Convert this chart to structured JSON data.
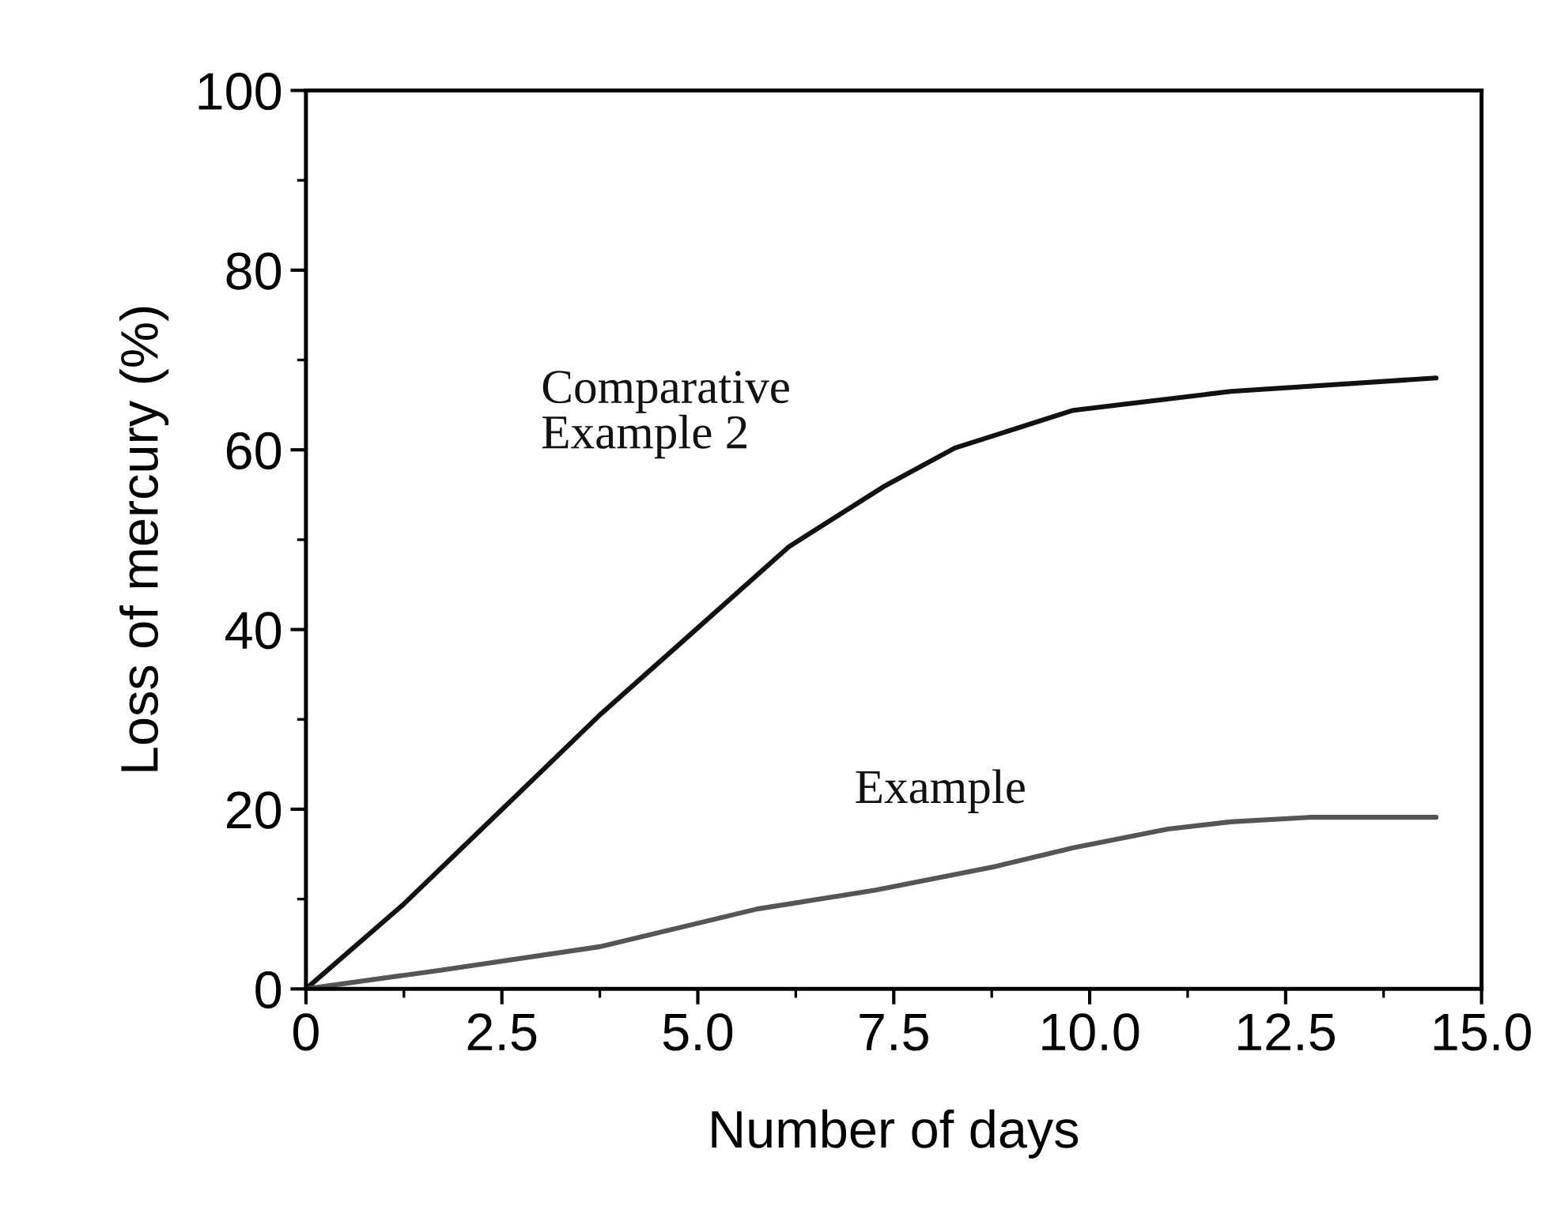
{
  "chart_data": {
    "type": "line",
    "xlabel": "Number of days",
    "ylabel": "Loss of mercury (%)",
    "xlim": [
      0,
      15
    ],
    "ylim": [
      0,
      100
    ],
    "xticks": [
      {
        "value": 0,
        "label": "0"
      },
      {
        "value": 2.5,
        "label": "2.5"
      },
      {
        "value": 5,
        "label": "5.0"
      },
      {
        "value": 7.5,
        "label": "7.5"
      },
      {
        "value": 10,
        "label": "10.0"
      },
      {
        "value": 12.5,
        "label": "12.5"
      },
      {
        "value": 15,
        "label": "15.0"
      }
    ],
    "yticks": [
      0,
      20,
      40,
      60,
      80,
      100
    ],
    "grid": false,
    "legend": false,
    "marker": "none",
    "line_style": "solid",
    "series": [
      {
        "name": "Comparative\nExample 2",
        "color": "#111111",
        "x": [
          0,
          1.23,
          2.54,
          3.75,
          4.95,
          6.16,
          7.37,
          8.28,
          9.79,
          11.8,
          14.42
        ],
        "values": [
          0,
          9.3,
          20.3,
          30.5,
          39.8,
          49.2,
          55.9,
          60.2,
          64.4,
          66.5,
          68.0
        ]
      },
      {
        "name": "Example",
        "color": "#555555",
        "x": [
          0,
          1.73,
          3.75,
          5.76,
          7.27,
          8.78,
          9.79,
          11.0,
          11.8,
          12.8,
          14.42
        ],
        "values": [
          0,
          2.1,
          4.7,
          8.9,
          11.0,
          13.6,
          15.7,
          17.8,
          18.6,
          19.1,
          19.1
        ]
      }
    ]
  }
}
